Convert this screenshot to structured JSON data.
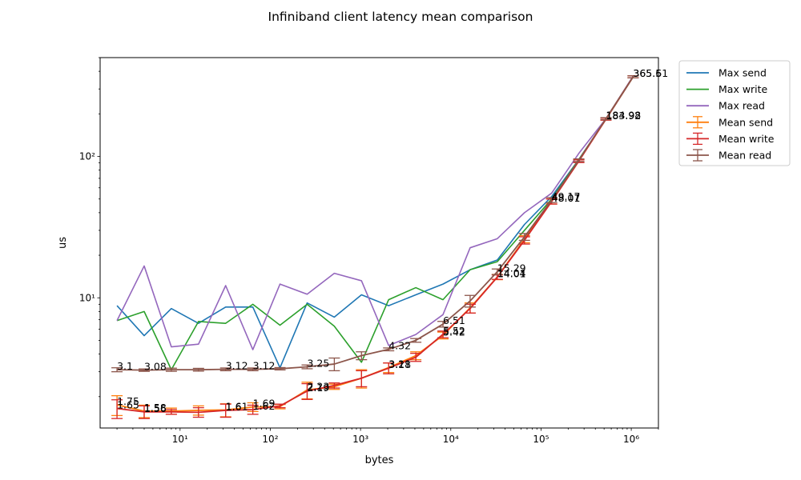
{
  "chart_data": {
    "type": "line",
    "title": "Infiniband client latency mean comparison",
    "xlabel": "bytes",
    "ylabel": "us",
    "xscale": "log",
    "yscale": "log",
    "xlim": [
      1.3,
      2000000
    ],
    "ylim": [
      1.2,
      500
    ],
    "grid": false,
    "legend_position": "outside-top-right",
    "x": [
      2,
      4,
      8,
      16,
      32,
      64,
      128,
      256,
      512,
      1024,
      2048,
      4096,
      8192,
      16384,
      32768,
      65536,
      131072,
      262144,
      524288,
      1048576
    ],
    "x_ticks": [
      {
        "value": 10,
        "label": "10¹"
      },
      {
        "value": 100,
        "label": "10²"
      },
      {
        "value": 1000,
        "label": "10³"
      },
      {
        "value": 10000,
        "label": "10⁴"
      },
      {
        "value": 100000,
        "label": "10⁵"
      },
      {
        "value": 1000000,
        "label": "10⁶"
      }
    ],
    "y_ticks": [
      {
        "value": 10,
        "label": "10¹"
      },
      {
        "value": 100,
        "label": "10²"
      }
    ],
    "series": [
      {
        "name": "Max send",
        "color": "#1f77b4",
        "kind": "line",
        "values": [
          8.8,
          5.4,
          8.4,
          6.6,
          8.6,
          8.6,
          3.2,
          9.2,
          7.3,
          10.5,
          8.8,
          10.5,
          12.5,
          15.8,
          18.5,
          33,
          52,
          95,
          183,
          365
        ]
      },
      {
        "name": "Max write",
        "color": "#2ca02c",
        "kind": "line",
        "values": [
          6.9,
          8.0,
          3.1,
          6.8,
          6.6,
          9.0,
          6.4,
          9.0,
          6.3,
          3.5,
          9.7,
          11.8,
          9.7,
          15.8,
          18.0,
          30,
          50,
          95,
          183,
          365
        ]
      },
      {
        "name": "Max read",
        "color": "#9467bd",
        "kind": "line",
        "values": [
          6.9,
          16.8,
          4.5,
          4.7,
          12.2,
          4.3,
          12.5,
          10.6,
          14.9,
          13.2,
          4.6,
          5.5,
          7.6,
          22.6,
          26.2,
          40,
          55,
          105,
          185,
          370
        ]
      },
      {
        "name": "Mean send",
        "color": "#ff7f0e",
        "kind": "errorbar",
        "values": [
          1.75,
          1.58,
          1.58,
          1.6,
          1.61,
          1.69,
          1.7,
          2.23,
          2.35,
          2.7,
          3.21,
          3.9,
          5.42,
          8.5,
          14.04,
          26,
          48.07,
          93,
          183.92,
          365.5
        ],
        "errors": [
          0.28,
          0.16,
          0.08,
          0.12,
          0.17,
          0.12,
          0.06,
          0.3,
          0.1,
          0.4,
          0.25,
          0.25,
          0.3,
          0.7,
          0.6,
          1.5,
          2,
          2,
          3,
          6
        ]
      },
      {
        "name": "Mean write",
        "color": "#d62728",
        "kind": "errorbar",
        "values": [
          1.65,
          1.56,
          1.56,
          1.55,
          1.6,
          1.62,
          1.72,
          2.19,
          2.4,
          2.7,
          3.18,
          3.8,
          5.52,
          8.4,
          14.01,
          25.5,
          48.01,
          92.5,
          183.5,
          365.4
        ],
        "errors": [
          0.25,
          0.16,
          0.06,
          0.12,
          0.17,
          0.12,
          0.05,
          0.28,
          0.1,
          0.35,
          0.28,
          0.25,
          0.3,
          0.6,
          0.5,
          1.5,
          2,
          2,
          3,
          6
        ]
      },
      {
        "name": "Mean read",
        "color": "#8c564b",
        "kind": "errorbar",
        "values": [
          3.1,
          3.08,
          3.1,
          3.1,
          3.12,
          3.12,
          3.15,
          3.25,
          3.4,
          3.9,
          4.32,
          5.0,
          6.51,
          9.5,
          15.29,
          27,
          49.17,
          94,
          184.98,
          365.61
        ],
        "errors": [
          0.1,
          0.06,
          0.08,
          0.07,
          0.07,
          0.07,
          0.06,
          0.1,
          0.35,
          0.25,
          0.1,
          0.15,
          0.3,
          0.9,
          0.7,
          1.5,
          2,
          2,
          3,
          6
        ]
      }
    ],
    "annotations": [
      {
        "x": 2,
        "y": 1.75,
        "text": "1.75"
      },
      {
        "x": 2,
        "y": 1.65,
        "text": "1.65"
      },
      {
        "x": 4,
        "y": 1.58,
        "text": "1.58"
      },
      {
        "x": 4,
        "y": 1.56,
        "text": "1.56"
      },
      {
        "x": 32,
        "y": 1.61,
        "text": "1.61"
      },
      {
        "x": 32,
        "y": 1.6,
        "text": "1.6"
      },
      {
        "x": 64,
        "y": 1.69,
        "text": "1.69"
      },
      {
        "x": 64,
        "y": 1.62,
        "text": "1.62"
      },
      {
        "x": 256,
        "y": 2.23,
        "text": "2.23"
      },
      {
        "x": 256,
        "y": 2.19,
        "text": "2.19"
      },
      {
        "x": 2048,
        "y": 3.21,
        "text": "3.21"
      },
      {
        "x": 2048,
        "y": 3.18,
        "text": "3.18"
      },
      {
        "x": 8192,
        "y": 5.52,
        "text": "5.52"
      },
      {
        "x": 8192,
        "y": 5.42,
        "text": "5.42"
      },
      {
        "x": 32768,
        "y": 14.04,
        "text": "14.04"
      },
      {
        "x": 32768,
        "y": 14.01,
        "text": "14.01"
      },
      {
        "x": 131072,
        "y": 48.07,
        "text": "48.07"
      },
      {
        "x": 131072,
        "y": 48.01,
        "text": "48.01"
      },
      {
        "x": 524288,
        "y": 183.92,
        "text": "183.92"
      },
      {
        "x": 1048576,
        "y": 365.5,
        "text": "365.5"
      },
      {
        "x": 2,
        "y": 3.1,
        "text": "3.1"
      },
      {
        "x": 4,
        "y": 3.08,
        "text": "3.08"
      },
      {
        "x": 32,
        "y": 3.12,
        "text": "3.12"
      },
      {
        "x": 64,
        "y": 3.12,
        "text": "3.12"
      },
      {
        "x": 256,
        "y": 3.25,
        "text": "3.25"
      },
      {
        "x": 2048,
        "y": 4.32,
        "text": "4.32"
      },
      {
        "x": 8192,
        "y": 6.51,
        "text": "6.51"
      },
      {
        "x": 32768,
        "y": 15.29,
        "text": "15.29"
      },
      {
        "x": 131072,
        "y": 49.17,
        "text": "49.17"
      },
      {
        "x": 524288,
        "y": 184.98,
        "text": "184.98"
      },
      {
        "x": 1048576,
        "y": 365.61,
        "text": "365.61"
      }
    ]
  }
}
